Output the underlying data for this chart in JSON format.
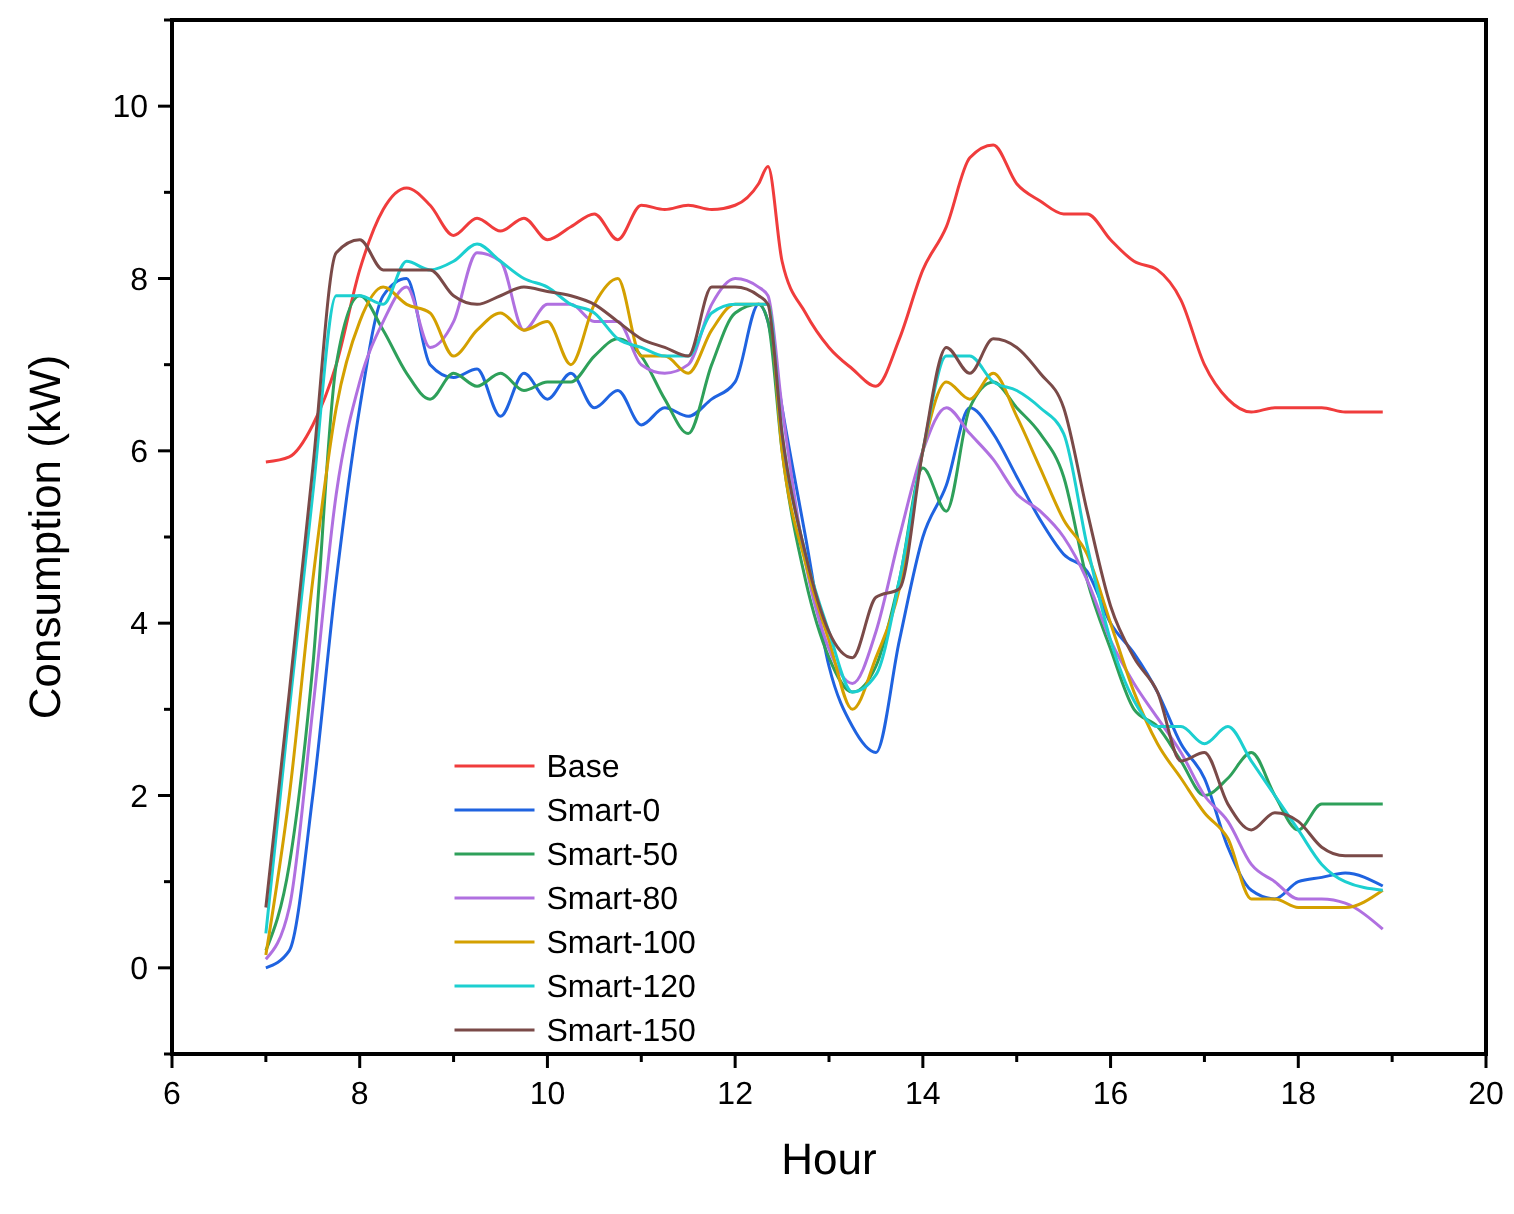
{
  "chart_data": {
    "type": "line",
    "xlabel": "Hour",
    "ylabel": "Consumption (kW)",
    "xlim": [
      6,
      20
    ],
    "ylim": [
      -1,
      11
    ],
    "xticks": [
      6,
      {
        "value": 7,
        "label": null
      },
      8,
      {
        "value": 9,
        "label": null
      },
      10,
      {
        "value": 11,
        "label": null
      },
      12,
      {
        "value": 13,
        "label": null
      },
      14,
      {
        "value": 15,
        "label": null
      },
      16,
      {
        "value": 17,
        "label": null
      },
      18,
      {
        "value": 19,
        "label": null
      },
      20
    ],
    "yticks": [
      {
        "value": -1,
        "label": null
      },
      0,
      {
        "value": 1,
        "label": null
      },
      2,
      {
        "value": 3,
        "label": null
      },
      4,
      {
        "value": 5,
        "label": null
      },
      6,
      {
        "value": 7,
        "label": null
      },
      8,
      {
        "value": 9,
        "label": null
      },
      10,
      {
        "value": 11,
        "label": null
      }
    ],
    "grid": false,
    "legend": "bottom left",
    "marker": "none",
    "line_style": "solid",
    "x": [
      7,
      7.25,
      7.5,
      7.75,
      8,
      8.25,
      8.5,
      8.75,
      9,
      9.25,
      9.5,
      9.75,
      10,
      10.25,
      10.5,
      10.75,
      11,
      11.25,
      11.5,
      11.75,
      12,
      12.25,
      12.35,
      12.5,
      12.75,
      13,
      13.25,
      13.5,
      13.75,
      14,
      14.25,
      14.5,
      14.75,
      15,
      15.25,
      15.5,
      15.75,
      16,
      16.25,
      16.5,
      16.75,
      17,
      17.25,
      17.5,
      17.75,
      18,
      18.25,
      18.5,
      18.9
    ],
    "series": [
      {
        "name": "Base",
        "color": "#f03c3c",
        "values": [
          5.87,
          5.93,
          6.3,
          7.0,
          8.1,
          8.8,
          9.05,
          8.85,
          8.5,
          8.7,
          8.55,
          8.7,
          8.45,
          8.6,
          8.75,
          8.45,
          8.85,
          8.8,
          8.85,
          8.8,
          8.85,
          9.1,
          9.3,
          8.2,
          7.6,
          7.2,
          6.95,
          6.75,
          7.3,
          8.1,
          8.6,
          9.4,
          9.55,
          9.1,
          8.9,
          8.75,
          8.75,
          8.45,
          8.2,
          8.1,
          7.75,
          7.0,
          6.6,
          6.45,
          6.5,
          6.5,
          6.5,
          6.45,
          6.45
        ]
      },
      {
        "name": "Smart-0",
        "color": "#1f63e0",
        "values": [
          0.0,
          0.2,
          2.0,
          4.5,
          6.5,
          7.8,
          8.0,
          7.0,
          6.85,
          6.95,
          6.4,
          6.9,
          6.6,
          6.9,
          6.5,
          6.7,
          6.3,
          6.5,
          6.4,
          6.6,
          6.8,
          7.7,
          7.5,
          6.5,
          5.0,
          3.5,
          2.8,
          2.5,
          3.8,
          5.0,
          5.6,
          6.5,
          6.2,
          5.7,
          5.2,
          4.8,
          4.6,
          4.0,
          3.65,
          3.2,
          2.6,
          2.2,
          1.4,
          0.9,
          0.8,
          1.0,
          1.05,
          1.1,
          0.95
        ]
      },
      {
        "name": "Smart-50",
        "color": "#2ea05a",
        "values": [
          0.2,
          1.2,
          3.5,
          7.0,
          7.8,
          7.4,
          6.9,
          6.6,
          6.9,
          6.75,
          6.9,
          6.7,
          6.8,
          6.8,
          7.1,
          7.3,
          7.1,
          6.6,
          6.2,
          7.0,
          7.6,
          7.7,
          7.5,
          6.0,
          4.5,
          3.6,
          3.2,
          3.5,
          4.5,
          5.8,
          5.3,
          6.5,
          6.8,
          6.5,
          6.2,
          5.7,
          4.5,
          3.7,
          3.0,
          2.8,
          2.4,
          2.0,
          2.2,
          2.5,
          2.0,
          1.6,
          1.9,
          1.9,
          1.9
        ]
      },
      {
        "name": "Smart-80",
        "color": "#b070e0",
        "values": [
          0.1,
          0.7,
          3.0,
          5.5,
          6.8,
          7.5,
          7.9,
          7.2,
          7.5,
          8.3,
          8.2,
          7.4,
          7.7,
          7.7,
          7.5,
          7.5,
          7.0,
          6.9,
          7.0,
          7.7,
          8.0,
          7.9,
          7.8,
          6.5,
          4.7,
          3.7,
          3.3,
          3.9,
          5.0,
          6.0,
          6.5,
          6.2,
          5.9,
          5.5,
          5.3,
          5.0,
          4.5,
          3.8,
          3.3,
          2.9,
          2.5,
          2.0,
          1.7,
          1.2,
          1.0,
          0.8,
          0.8,
          0.75,
          0.45
        ]
      },
      {
        "name": "Smart-100",
        "color": "#d4a000",
        "values": [
          0.15,
          2.0,
          4.5,
          6.5,
          7.5,
          7.9,
          7.7,
          7.6,
          7.1,
          7.4,
          7.6,
          7.4,
          7.5,
          7.0,
          7.7,
          8.0,
          7.1,
          7.1,
          6.9,
          7.4,
          7.7,
          7.7,
          7.7,
          6.0,
          4.7,
          3.8,
          3.0,
          3.6,
          4.4,
          6.0,
          6.8,
          6.6,
          6.9,
          6.4,
          5.8,
          5.2,
          4.8,
          4.0,
          3.2,
          2.6,
          2.2,
          1.8,
          1.5,
          0.8,
          0.8,
          0.7,
          0.7,
          0.7,
          0.9
        ]
      },
      {
        "name": "Smart-120",
        "color": "#1ccfd0",
        "values": [
          0.4,
          3.0,
          5.5,
          7.8,
          7.8,
          7.7,
          8.2,
          8.1,
          8.2,
          8.4,
          8.2,
          8.0,
          7.9,
          7.7,
          7.6,
          7.3,
          7.2,
          7.1,
          7.1,
          7.6,
          7.7,
          7.7,
          7.7,
          6.2,
          4.8,
          3.9,
          3.2,
          3.4,
          4.5,
          6.0,
          7.1,
          7.1,
          6.8,
          6.7,
          6.5,
          6.2,
          4.9,
          3.8,
          3.1,
          2.8,
          2.8,
          2.6,
          2.8,
          2.4,
          2.0,
          1.6,
          1.2,
          1.0,
          0.9
        ]
      },
      {
        "name": "Smart-150",
        "color": "#7a4a48",
        "values": [
          0.7,
          3.2,
          5.8,
          8.3,
          8.45,
          8.1,
          8.1,
          8.1,
          7.8,
          7.7,
          7.8,
          7.9,
          7.85,
          7.8,
          7.7,
          7.5,
          7.3,
          7.2,
          7.1,
          7.9,
          7.9,
          7.8,
          7.7,
          6.2,
          4.8,
          3.9,
          3.6,
          4.3,
          4.4,
          6.0,
          7.2,
          6.9,
          7.3,
          7.2,
          6.9,
          6.5,
          5.3,
          4.2,
          3.6,
          3.2,
          2.4,
          2.5,
          1.9,
          1.6,
          1.8,
          1.7,
          1.4,
          1.3,
          1.3
        ]
      }
    ]
  }
}
